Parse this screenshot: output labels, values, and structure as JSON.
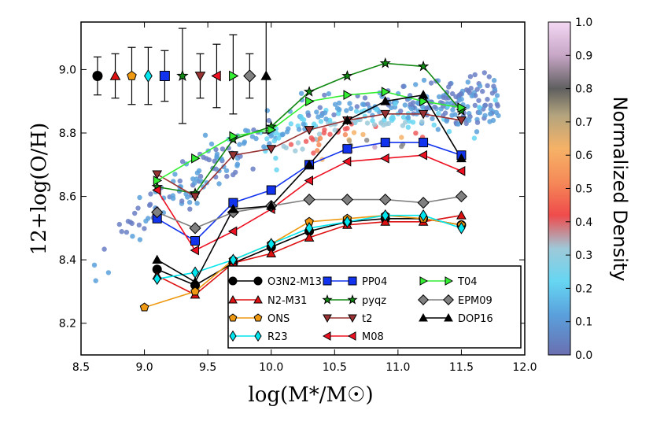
{
  "chart_data": {
    "type": "line",
    "xlabel": "log(M*/M☉)",
    "ylabel": "12+log(O/H)",
    "xlim": [
      8.5,
      12.0
    ],
    "ylim": [
      8.1,
      9.15
    ],
    "xticks": [
      "8.5",
      "9.0",
      "9.5",
      "10.0",
      "10.5",
      "11.0",
      "11.5",
      "12.0"
    ],
    "yticks": [
      "8.2",
      "8.4",
      "8.6",
      "8.8",
      "9.0"
    ],
    "grid": false,
    "legend_position": "lower-right",
    "colorbar": {
      "label": "Normalized Density",
      "ticks": [
        "0.0",
        "0.1",
        "0.2",
        "0.3",
        "0.4",
        "0.5",
        "0.6",
        "0.7",
        "0.8",
        "0.9",
        "1.0"
      ]
    },
    "series": [
      {
        "name": "O3N2-M13",
        "color": "#000000",
        "marker": "circle",
        "x": [
          9.1,
          9.4,
          9.7,
          10.0,
          10.3,
          10.6,
          10.9,
          11.2,
          11.5
        ],
        "y": [
          8.37,
          8.32,
          8.39,
          8.44,
          8.49,
          8.52,
          8.53,
          8.53,
          8.51
        ]
      },
      {
        "name": "N2-M31",
        "color": "#dd1111",
        "marker": "triangle-up",
        "x": [
          9.1,
          9.4,
          9.7,
          10.0,
          10.3,
          10.6,
          10.9,
          11.2,
          11.5
        ],
        "y": [
          8.35,
          8.29,
          8.39,
          8.42,
          8.47,
          8.51,
          8.52,
          8.52,
          8.54
        ]
      },
      {
        "name": "ONS",
        "color": "#ee9911",
        "marker": "pentagon",
        "x": [
          9.0,
          9.4,
          9.7,
          10.0,
          10.3,
          10.6,
          10.9,
          11.2,
          11.5
        ],
        "y": [
          8.25,
          8.3,
          8.4,
          8.45,
          8.52,
          8.53,
          8.54,
          8.53,
          8.51
        ]
      },
      {
        "name": "R23",
        "color": "#00e5ee",
        "marker": "thin-diamond",
        "x": [
          9.1,
          9.4,
          9.7,
          10.0,
          10.3,
          10.6,
          10.9,
          11.2,
          11.5
        ],
        "y": [
          8.34,
          8.36,
          8.4,
          8.45,
          8.5,
          8.52,
          8.54,
          8.54,
          8.5
        ]
      },
      {
        "name": "PP04",
        "color": "#1133ee",
        "marker": "square",
        "x": [
          9.1,
          9.4,
          9.7,
          10.0,
          10.3,
          10.6,
          10.9,
          11.2,
          11.5
        ],
        "y": [
          8.53,
          8.46,
          8.58,
          8.62,
          8.7,
          8.75,
          8.77,
          8.77,
          8.73
        ]
      },
      {
        "name": "pyqz",
        "color": "#118811",
        "marker": "star",
        "x": [
          9.1,
          9.4,
          9.7,
          10.0,
          10.3,
          10.6,
          10.9,
          11.2,
          11.5
        ],
        "y": [
          8.63,
          8.61,
          8.78,
          8.82,
          8.93,
          8.98,
          9.02,
          9.01,
          8.87
        ]
      },
      {
        "name": "t2",
        "color": "#993333",
        "marker": "triangle-down",
        "x": [
          9.1,
          9.4,
          9.7,
          10.0,
          10.3,
          10.6,
          10.9,
          11.2,
          11.5
        ],
        "y": [
          8.67,
          8.6,
          8.73,
          8.75,
          8.81,
          8.84,
          8.86,
          8.86,
          8.84
        ]
      },
      {
        "name": "M08",
        "color": "#ee1122",
        "marker": "triangle-left",
        "x": [
          9.1,
          9.4,
          9.7,
          10.0,
          10.3,
          10.6,
          10.9,
          11.2,
          11.5
        ],
        "y": [
          8.62,
          8.43,
          8.49,
          8.56,
          8.65,
          8.71,
          8.72,
          8.73,
          8.68
        ]
      },
      {
        "name": "T04",
        "color": "#33ee33",
        "marker": "triangle-right",
        "x": [
          9.1,
          9.4,
          9.7,
          10.0,
          10.3,
          10.6,
          10.9,
          11.2,
          11.5
        ],
        "y": [
          8.65,
          8.72,
          8.79,
          8.81,
          8.9,
          8.92,
          8.93,
          8.9,
          8.88
        ]
      },
      {
        "name": "EPM09",
        "color": "#808080",
        "marker": "diamond",
        "x": [
          9.1,
          9.4,
          9.7,
          10.0,
          10.3,
          10.6,
          10.9,
          11.2,
          11.5
        ],
        "y": [
          8.55,
          8.5,
          8.55,
          8.57,
          8.59,
          8.59,
          8.59,
          8.58,
          8.6
        ]
      },
      {
        "name": "DOP16",
        "color": "#000000",
        "marker": "triangle-up",
        "x": [
          9.1,
          9.4,
          9.7,
          10.0,
          10.3,
          10.6,
          10.9,
          11.2,
          11.5
        ],
        "y": [
          8.4,
          8.33,
          8.56,
          8.57,
          8.7,
          8.84,
          8.9,
          8.92,
          8.72
        ]
      }
    ],
    "error_bars": [
      {
        "name": "O3N2-M13",
        "x": 8.63,
        "y": 8.98,
        "low": 8.92,
        "high": 9.04
      },
      {
        "name": "N2-M31",
        "x": 8.77,
        "y": 8.98,
        "low": 8.91,
        "high": 9.05
      },
      {
        "name": "ONS",
        "x": 8.9,
        "y": 8.98,
        "low": 8.89,
        "high": 9.07
      },
      {
        "name": "R23",
        "x": 9.03,
        "y": 8.98,
        "low": 8.89,
        "high": 9.07
      },
      {
        "name": "PP04",
        "x": 9.16,
        "y": 8.98,
        "low": 8.9,
        "high": 9.06
      },
      {
        "name": "pyqz",
        "x": 9.3,
        "y": 8.98,
        "low": 8.83,
        "high": 9.13
      },
      {
        "name": "t2",
        "x": 9.44,
        "y": 8.98,
        "low": 8.91,
        "high": 9.05
      },
      {
        "name": "M08",
        "x": 9.57,
        "y": 8.98,
        "low": 8.88,
        "high": 9.08
      },
      {
        "name": "T04",
        "x": 9.7,
        "y": 8.98,
        "low": 8.86,
        "high": 9.11
      },
      {
        "name": "EPM09",
        "x": 9.83,
        "y": 8.98,
        "low": 8.91,
        "high": 9.05
      },
      {
        "name": "DOP16",
        "x": 9.96,
        "y": 8.98,
        "low": 8.8,
        "high": 9.15
      }
    ]
  }
}
